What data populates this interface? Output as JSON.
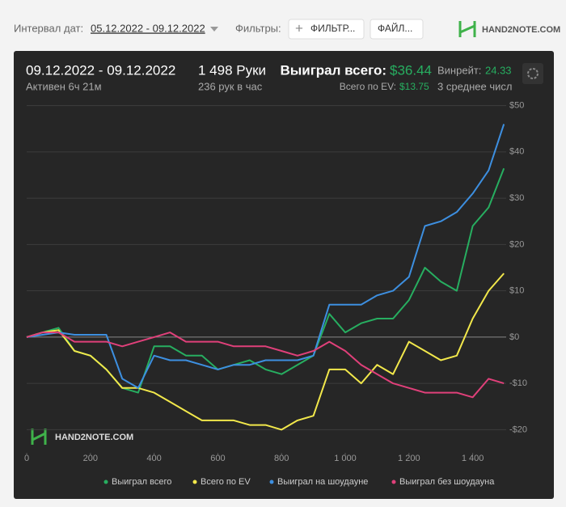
{
  "toolbar": {
    "date_label": "Интервал дат:",
    "date_range": "05.12.2022 - 09.12.2022",
    "filters_label": "Фильтры:",
    "filter_button": "ФИЛЬТР...",
    "file_button": "ФАЙЛ...",
    "logo": "HAND2NOTE.COM"
  },
  "header": {
    "period": "09.12.2022 - 09.12.2022",
    "active": "Активен 6ч 21м",
    "hands": "1 498 Руки",
    "hands_per_hour": "236 рук в час",
    "won_label": "Выиграл всего:",
    "won_value": "$36.44",
    "ev_label": "Всего по EV:",
    "ev_value": "$13.75",
    "winrate_label": "Винрейт:",
    "winrate_value": "24.33",
    "average": "3 среднее числ"
  },
  "watermark": "HAND2NOTE.COM",
  "chart_data": {
    "type": "line",
    "x": [
      0,
      50,
      100,
      150,
      200,
      250,
      300,
      350,
      400,
      450,
      500,
      550,
      600,
      650,
      700,
      750,
      800,
      850,
      900,
      950,
      1000,
      1050,
      1100,
      1150,
      1200,
      1250,
      1300,
      1350,
      1400,
      1450,
      1498
    ],
    "series": [
      {
        "name": "Выиграл всего",
        "color": "#27ae60",
        "values": [
          0,
          1,
          2,
          -3,
          -4,
          -7,
          -11,
          -12,
          -2,
          -2,
          -4,
          -4,
          -7,
          -6,
          -5,
          -7,
          -8,
          -6,
          -4,
          5,
          1,
          3,
          4,
          4,
          8,
          15,
          12,
          10,
          24,
          28,
          36.44
        ]
      },
      {
        "name": "Всего по EV",
        "color": "#f2e84b",
        "values": [
          0,
          1,
          1.5,
          -3,
          -4,
          -7,
          -11,
          -11,
          -12,
          -14,
          -16,
          -18,
          -18,
          -18,
          -19,
          -19,
          -20,
          -18,
          -17,
          -7,
          -7,
          -10,
          -6,
          -8,
          -1,
          -3,
          -5,
          -4,
          4,
          10,
          13.75
        ]
      },
      {
        "name": "Выиграл на шоудауне",
        "color": "#3d8fe0",
        "values": [
          0,
          0.5,
          1,
          0.5,
          0.5,
          0.5,
          -9,
          -11,
          -4,
          -5,
          -5,
          -6,
          -7,
          -6,
          -6,
          -5,
          -5,
          -5,
          -4,
          7,
          7,
          7,
          9,
          10,
          13,
          24,
          25,
          27,
          31,
          36,
          46
        ]
      },
      {
        "name": "Выиграл без шоудауна",
        "color": "#e0407a",
        "values": [
          0,
          1,
          1,
          -1,
          -1,
          -1,
          -2,
          -1,
          0,
          1,
          -1,
          -1,
          -1,
          -2,
          -2,
          -2,
          -3,
          -4,
          -3,
          -1,
          -3,
          -6,
          -8,
          -10,
          -11,
          -12,
          -12,
          -12,
          -13,
          -9,
          -10
        ]
      }
    ],
    "xlim": [
      0,
      1500
    ],
    "ylim": [
      -25,
      51.5
    ],
    "xticks": [
      0,
      200,
      400,
      600,
      800,
      {
        "value": 1000,
        "label": "1 000"
      },
      {
        "value": 1200,
        "label": "1 200"
      },
      {
        "value": 1400,
        "label": "1 400"
      }
    ],
    "yticks": [
      {
        "value": 50,
        "label": "$50"
      },
      {
        "value": 40,
        "label": "$40"
      },
      {
        "value": 30,
        "label": "$30"
      },
      {
        "value": 20,
        "label": "$20"
      },
      {
        "value": 10,
        "label": "$10"
      },
      {
        "value": 0,
        "label": "$0"
      },
      {
        "value": -10,
        "label": "-$10"
      },
      {
        "value": -20,
        "label": "-$20"
      }
    ],
    "grid": true
  }
}
